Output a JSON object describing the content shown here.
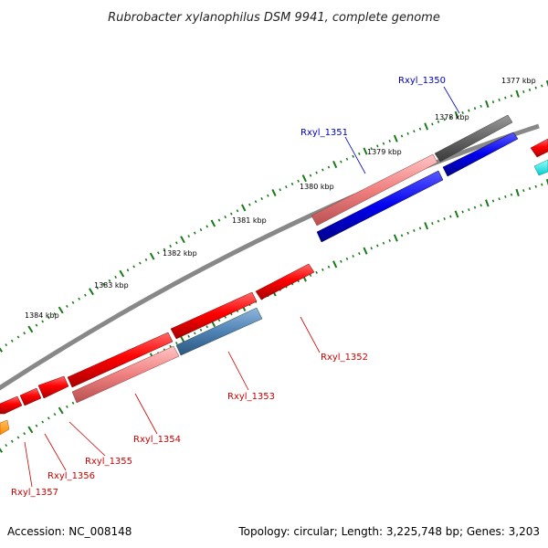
{
  "title": "Rubrobacter xylanophilus DSM 9941, complete genome",
  "footer": {
    "accession": "Accession: NC_008148",
    "summary": "Topology: circular; Length: 3,225,748 bp; Genes: 3,203"
  },
  "colors": {
    "backbone": "#888888",
    "tick": "#1a7a1a",
    "reverse_label": "#cc0000",
    "forward_label": "#0000bb"
  },
  "ticks": [
    {
      "label": "1377 kbp"
    },
    {
      "label": "1378 kbp"
    },
    {
      "label": "1379 kbp"
    },
    {
      "label": "1380 kbp"
    },
    {
      "label": "1381 kbp"
    },
    {
      "label": "1382 kbp"
    },
    {
      "label": "1383 kbp"
    },
    {
      "label": "1384 kbp"
    }
  ],
  "gene_labels": [
    {
      "text": "Rxyl_1350",
      "strand": "forward"
    },
    {
      "text": "Rxyl_1351",
      "strand": "forward"
    },
    {
      "text": "Rxyl_1352",
      "strand": "reverse"
    },
    {
      "text": "Rxyl_1353",
      "strand": "reverse"
    },
    {
      "text": "Rxyl_1354",
      "strand": "reverse"
    },
    {
      "text": "Rxyl_1355",
      "strand": "reverse"
    },
    {
      "text": "Rxyl_1356",
      "strand": "reverse"
    },
    {
      "text": "Rxyl_1357",
      "strand": "reverse"
    }
  ]
}
